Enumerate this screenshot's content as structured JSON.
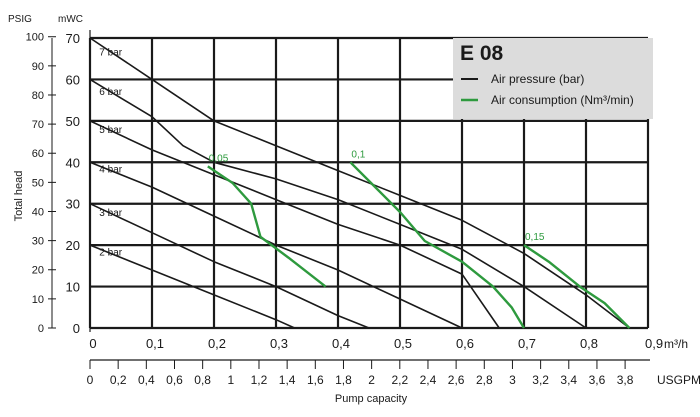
{
  "chart_data": {
    "type": "line",
    "title": "E 08",
    "x_axis_bottom": {
      "label": "Pump capacity",
      "unit": "USGPM",
      "ticks": [
        "0",
        "0,2",
        "0,4",
        "0,6",
        "0,8",
        "1",
        "1,2",
        "1,4",
        "1,6",
        "1,8",
        "2",
        "2,2",
        "2,4",
        "2,6",
        "2,8",
        "3",
        "3,2",
        "3,4",
        "3,6",
        "3,8"
      ]
    },
    "x_axis_top": {
      "unit": "m³/h",
      "range": [
        0,
        0.9
      ],
      "ticks": [
        "0",
        "0,1",
        "0,2",
        "0,3",
        "0,4",
        "0,5",
        "0,6",
        "0,7",
        "0,8",
        "0,9"
      ]
    },
    "y_axis_left": {
      "label": "Total head",
      "unit_psig": "PSIG",
      "unit_mwc": "mWC",
      "range": [
        0,
        70
      ],
      "mwc_ticks": [
        "0",
        "10",
        "20",
        "30",
        "40",
        "50",
        "60",
        "70"
      ],
      "psig_ticks": [
        "0",
        "10",
        "20",
        "30",
        "40",
        "50",
        "60",
        "70",
        "80",
        "90",
        "100"
      ]
    },
    "legend": {
      "position": "top-right",
      "items": [
        {
          "label": "Air pressure (bar)",
          "color": "#1a1a1a"
        },
        {
          "label": "Air consumption (Nm³/min)",
          "color": "#2e9a3e"
        }
      ]
    },
    "pressure_series": [
      {
        "name": "7 bar",
        "points": [
          [
            0,
            70
          ],
          [
            0.1,
            60
          ],
          [
            0.2,
            50
          ],
          [
            0.3,
            44
          ],
          [
            0.4,
            38
          ],
          [
            0.5,
            32
          ],
          [
            0.6,
            26
          ],
          [
            0.7,
            18
          ],
          [
            0.8,
            8
          ],
          [
            0.87,
            0
          ]
        ]
      },
      {
        "name": "6 bar",
        "points": [
          [
            0,
            60
          ],
          [
            0.1,
            51
          ],
          [
            0.15,
            44
          ],
          [
            0.2,
            40
          ],
          [
            0.3,
            36
          ],
          [
            0.4,
            31
          ],
          [
            0.5,
            25
          ],
          [
            0.6,
            19
          ],
          [
            0.7,
            10
          ],
          [
            0.8,
            0
          ]
        ]
      },
      {
        "name": "5 bar",
        "points": [
          [
            0,
            50
          ],
          [
            0.1,
            43
          ],
          [
            0.2,
            37
          ],
          [
            0.3,
            31
          ],
          [
            0.4,
            25
          ],
          [
            0.5,
            20
          ],
          [
            0.6,
            13
          ],
          [
            0.66,
            0
          ]
        ]
      },
      {
        "name": "4 bar",
        "points": [
          [
            0,
            40
          ],
          [
            0.1,
            34
          ],
          [
            0.2,
            27
          ],
          [
            0.3,
            20
          ],
          [
            0.4,
            14
          ],
          [
            0.5,
            7
          ],
          [
            0.6,
            0
          ]
        ]
      },
      {
        "name": "3 bar",
        "points": [
          [
            0,
            30
          ],
          [
            0.1,
            23
          ],
          [
            0.2,
            16
          ],
          [
            0.3,
            10
          ],
          [
            0.4,
            3
          ],
          [
            0.45,
            0
          ]
        ]
      },
      {
        "name": "2 bar",
        "points": [
          [
            0,
            20
          ],
          [
            0.1,
            14
          ],
          [
            0.2,
            8
          ],
          [
            0.3,
            2
          ],
          [
            0.33,
            0
          ]
        ]
      }
    ],
    "air_consumption_series": [
      {
        "name": "0,05",
        "points": [
          [
            0.19,
            39
          ],
          [
            0.23,
            35
          ],
          [
            0.26,
            30
          ],
          [
            0.275,
            22
          ],
          [
            0.32,
            17
          ],
          [
            0.38,
            10
          ]
        ]
      },
      {
        "name": "0,1",
        "points": [
          [
            0.42,
            40
          ],
          [
            0.46,
            34
          ],
          [
            0.5,
            28
          ],
          [
            0.54,
            21
          ],
          [
            0.6,
            16
          ],
          [
            0.65,
            10
          ],
          [
            0.68,
            5
          ],
          [
            0.7,
            0
          ]
        ]
      },
      {
        "name": "0,15",
        "points": [
          [
            0.7,
            20
          ],
          [
            0.74,
            16
          ],
          [
            0.79,
            10
          ],
          [
            0.83,
            6
          ],
          [
            0.87,
            0
          ]
        ]
      }
    ]
  }
}
